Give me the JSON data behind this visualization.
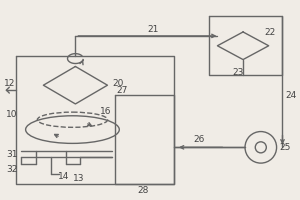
{
  "bg_color": "#f0ece6",
  "line_color": "#666666",
  "label_color": "#444444",
  "fs": 6.5,
  "lw": 1.0
}
